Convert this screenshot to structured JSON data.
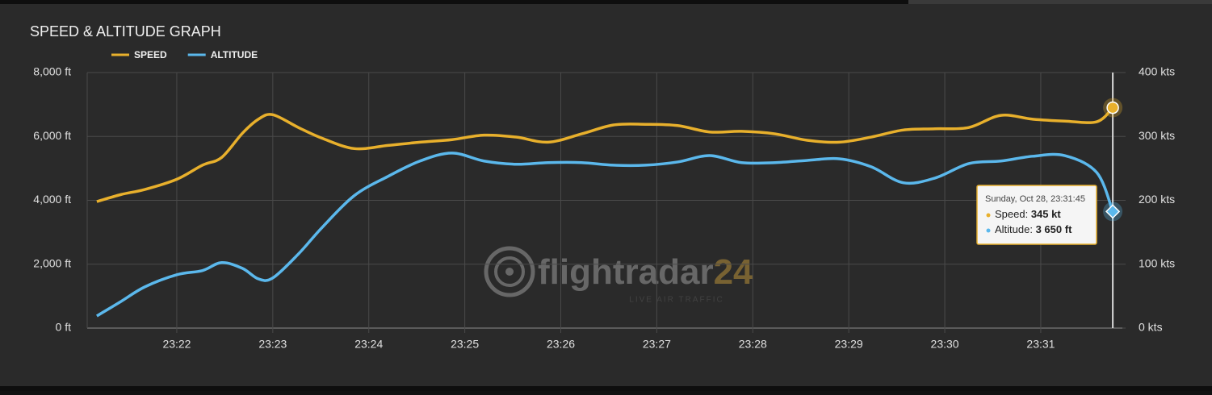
{
  "chart_data": {
    "type": "line",
    "title": "SPEED & ALTITUDE GRAPH",
    "x": [
      "23:21:10",
      "23:21:25",
      "23:21:40",
      "23:22:00",
      "23:22:16",
      "23:22:28",
      "23:22:41",
      "23:22:51",
      "23:23:00",
      "23:23:16",
      "23:23:31",
      "23:23:51",
      "23:24:12",
      "23:24:32",
      "23:24:52",
      "23:25:12",
      "23:25:32",
      "23:25:52",
      "23:26:13",
      "23:26:33",
      "23:26:53",
      "23:27:13",
      "23:27:33",
      "23:27:53",
      "23:28:14",
      "23:28:34",
      "23:28:54",
      "23:29:14",
      "23:29:34",
      "23:29:54",
      "23:30:15",
      "23:30:35",
      "23:30:55",
      "23:31:15",
      "23:31:35",
      "23:31:45"
    ],
    "series": [
      {
        "name": "SPEED",
        "color": "#e8b02c",
        "axis": "y2",
        "values": [
          198,
          209,
          217,
          233,
          255,
          267,
          305,
          327,
          334,
          314,
          297,
          281,
          286,
          291,
          295,
          302,
          299,
          291,
          304,
          318,
          319,
          317,
          307,
          308,
          304,
          294,
          291,
          299,
          310,
          312,
          314,
          333,
          327,
          324,
          323,
          345
        ]
      },
      {
        "name": "ALTITUDE",
        "color": "#5bb8ec",
        "values": [
          380,
          830,
          1290,
          1670,
          1800,
          2050,
          1870,
          1540,
          1570,
          2320,
          3160,
          4150,
          4750,
          5230,
          5480,
          5230,
          5130,
          5180,
          5180,
          5100,
          5100,
          5200,
          5400,
          5180,
          5180,
          5250,
          5300,
          5050,
          4550,
          4700,
          5150,
          5230,
          5380,
          5400,
          4870,
          3650
        ]
      }
    ],
    "xlim": [
      "23:21:04",
      "23:31:51"
    ],
    "xticks": [
      "23:22",
      "23:23",
      "23:24",
      "23:25",
      "23:26",
      "23:27",
      "23:28",
      "23:29",
      "23:30",
      "23:31"
    ],
    "ylim": [
      0,
      8000
    ],
    "yticks": [
      {
        "value": 0,
        "label": "0 ft"
      },
      {
        "value": 2000,
        "label": "2,000 ft"
      },
      {
        "value": 4000,
        "label": "4,000 ft"
      },
      {
        "value": 6000,
        "label": "6,000 ft"
      },
      {
        "value": 8000,
        "label": "8,000 ft"
      }
    ],
    "y2lim": [
      0,
      400
    ],
    "y2ticks": [
      {
        "value": 0,
        "label": "0 kts"
      },
      {
        "value": 100,
        "label": "100 kts"
      },
      {
        "value": 200,
        "label": "200 kts"
      },
      {
        "value": 300,
        "label": "300 kts"
      },
      {
        "value": 400,
        "label": "400 kts"
      }
    ],
    "grid": true,
    "legend": "top-left",
    "tooltip": {
      "title": "Sunday, Oct 28, 23:31:45",
      "speed_label": "Speed: ",
      "speed_value": "345 kt",
      "altitude_label": "Altitude: ",
      "altitude_value": "3 650 ft"
    },
    "watermark": {
      "text": "flightradar",
      "number": "24",
      "subtitle": "LIVE AIR TRAFFIC"
    }
  }
}
